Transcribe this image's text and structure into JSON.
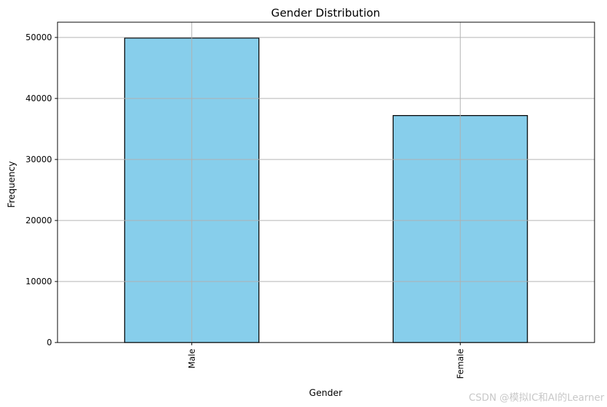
{
  "chart_data": {
    "type": "bar",
    "title": "Gender Distribution",
    "xlabel": "Gender",
    "ylabel": "Frequency",
    "categories": [
      "Male",
      "Female"
    ],
    "values": [
      49900,
      37200
    ],
    "ylim": [
      0,
      52500
    ],
    "yticks": [
      0,
      10000,
      20000,
      30000,
      40000,
      50000
    ],
    "ytick_labels": [
      "0",
      "10000",
      "20000",
      "30000",
      "40000",
      "50000"
    ],
    "grid": true,
    "legend": "none",
    "colors": {
      "bar_fill": "#87ceeb",
      "bar_edge": "#000000",
      "grid": "#b0b0b0"
    }
  },
  "watermark": "CSDN @模拟IC和AI的Learner"
}
